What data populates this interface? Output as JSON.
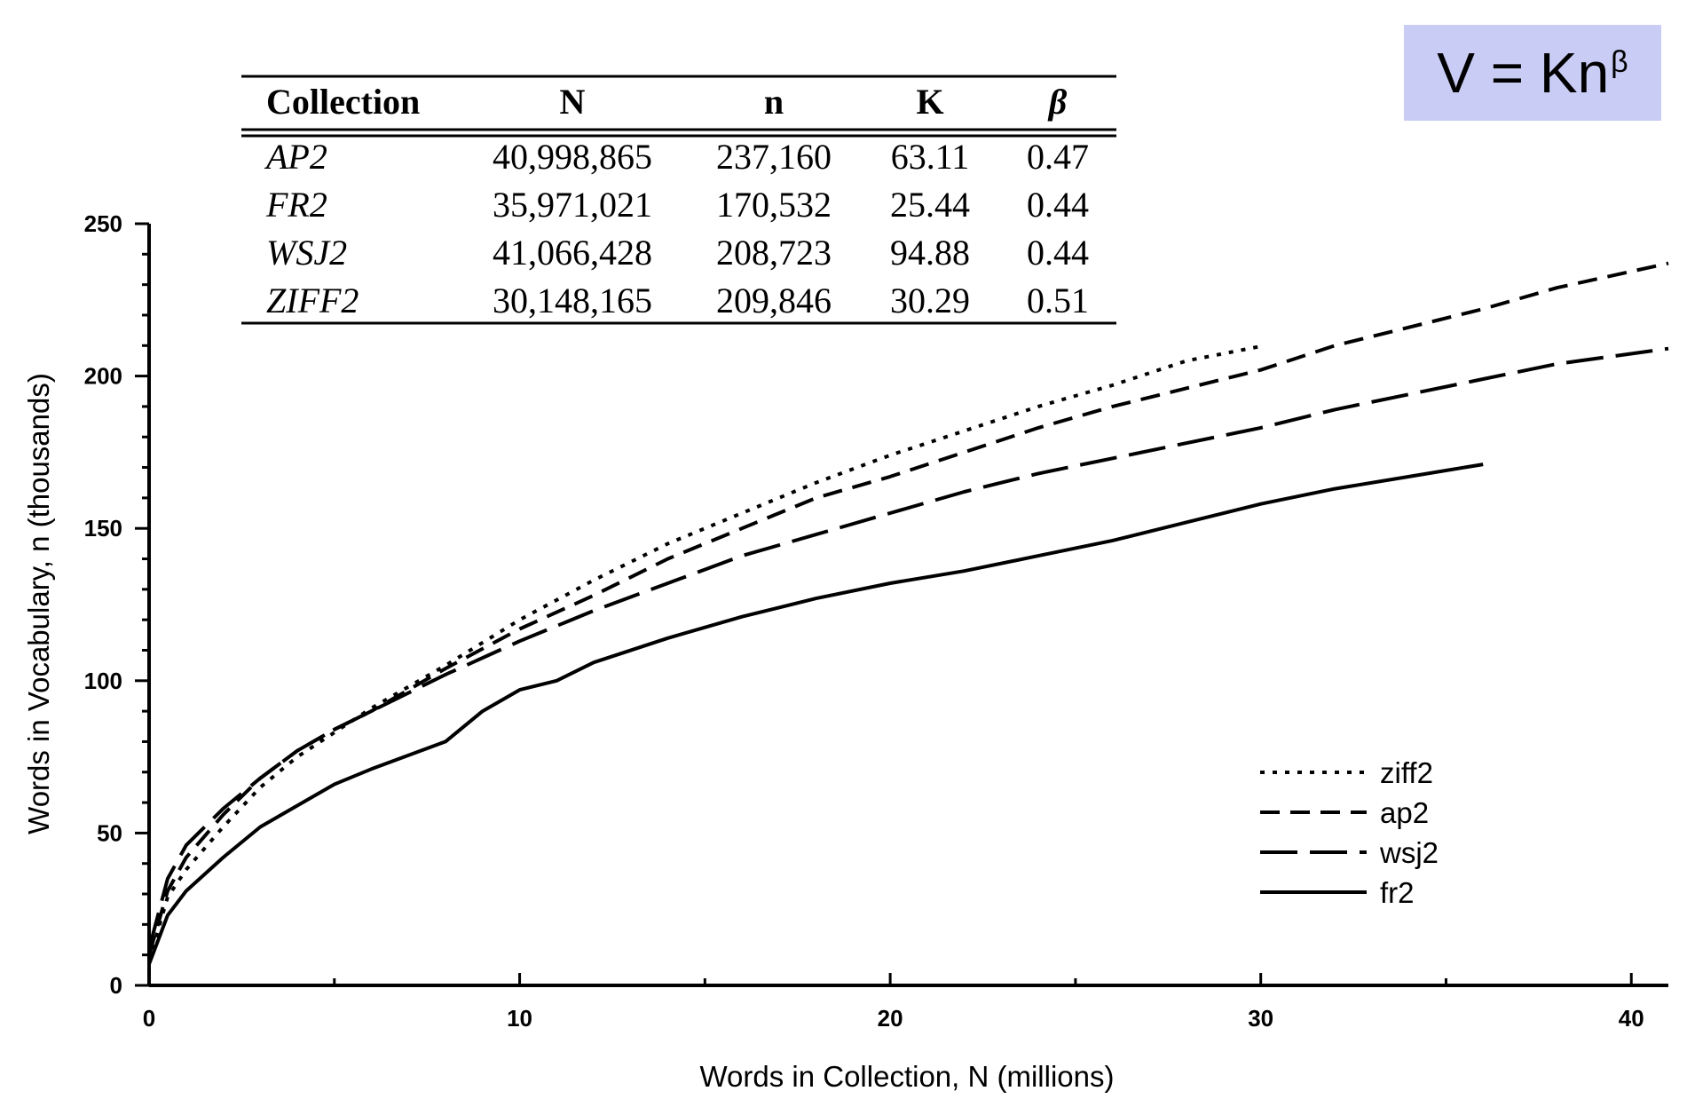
{
  "formula": {
    "lhs": "V = Kn",
    "exponent": "β"
  },
  "table": {
    "headers": [
      "Collection",
      "N",
      "n",
      "K",
      "β"
    ],
    "rows": [
      [
        "AP2",
        "40,998,865",
        "237,160",
        "63.11",
        "0.47"
      ],
      [
        "FR2",
        "35,971,021",
        "170,532",
        "25.44",
        "0.44"
      ],
      [
        "WSJ2",
        "41,066,428",
        "208,723",
        "94.88",
        "0.44"
      ],
      [
        "ZIFF2",
        "30,148,165",
        "209,846",
        "30.29",
        "0.51"
      ]
    ]
  },
  "chart_data": {
    "type": "line",
    "xlabel": "Words in Collection, N (millions)",
    "ylabel": "Words in Vocabulary, n (thousands)",
    "xlim": [
      0,
      41
    ],
    "ylim": [
      0,
      250
    ],
    "xticks": [
      0,
      10,
      20,
      30,
      40
    ],
    "yticks": [
      0,
      50,
      100,
      150,
      200,
      250
    ],
    "grid": false,
    "legend_position": "bottom-right",
    "series": [
      {
        "name": "ziff2",
        "style": "dotted",
        "x": [
          0,
          0.5,
          1,
          2,
          3,
          4,
          5,
          6,
          8,
          10,
          12,
          14,
          16,
          18,
          20,
          22,
          24,
          26,
          28,
          30.1
        ],
        "y": [
          8,
          29,
          38,
          52,
          65,
          75,
          83,
          91,
          105,
          120,
          133,
          145,
          155,
          165,
          174,
          182,
          190,
          197,
          205,
          210
        ]
      },
      {
        "name": "ap2",
        "style": "dashed",
        "x": [
          0,
          0.5,
          1,
          2,
          3,
          4,
          5,
          6,
          8,
          10,
          12,
          14,
          16,
          18,
          20,
          22,
          24,
          26,
          28,
          30,
          32,
          34,
          36,
          38,
          41
        ],
        "y": [
          10,
          31,
          42,
          56,
          68,
          77,
          84,
          90,
          104,
          117,
          128,
          140,
          150,
          160,
          167,
          175,
          183,
          190,
          196,
          202,
          210,
          216,
          222,
          229,
          237
        ]
      },
      {
        "name": "wsj2",
        "style": "long-dashed",
        "x": [
          0,
          0.5,
          1,
          2,
          3,
          4,
          5,
          6,
          8,
          10,
          12,
          14,
          16,
          18,
          20,
          22,
          24,
          26,
          28,
          30,
          32,
          34,
          36,
          38,
          41
        ],
        "y": [
          12,
          35,
          46,
          58,
          68,
          77,
          84,
          90,
          102,
          113,
          123,
          132,
          141,
          148,
          155,
          162,
          168,
          173,
          178,
          183,
          189,
          194,
          199,
          204,
          209
        ]
      },
      {
        "name": "fr2",
        "style": "solid",
        "x": [
          0,
          0.5,
          1,
          2,
          3,
          4,
          5,
          6,
          8,
          9,
          10,
          11,
          12,
          14,
          16,
          18,
          20,
          22,
          24,
          26,
          28,
          30,
          32,
          34,
          36
        ],
        "y": [
          7,
          23,
          31,
          42,
          52,
          59,
          66,
          71,
          80,
          90,
          97,
          100,
          106,
          114,
          121,
          127,
          132,
          136,
          141,
          146,
          152,
          158,
          163,
          167,
          171
        ]
      }
    ]
  }
}
